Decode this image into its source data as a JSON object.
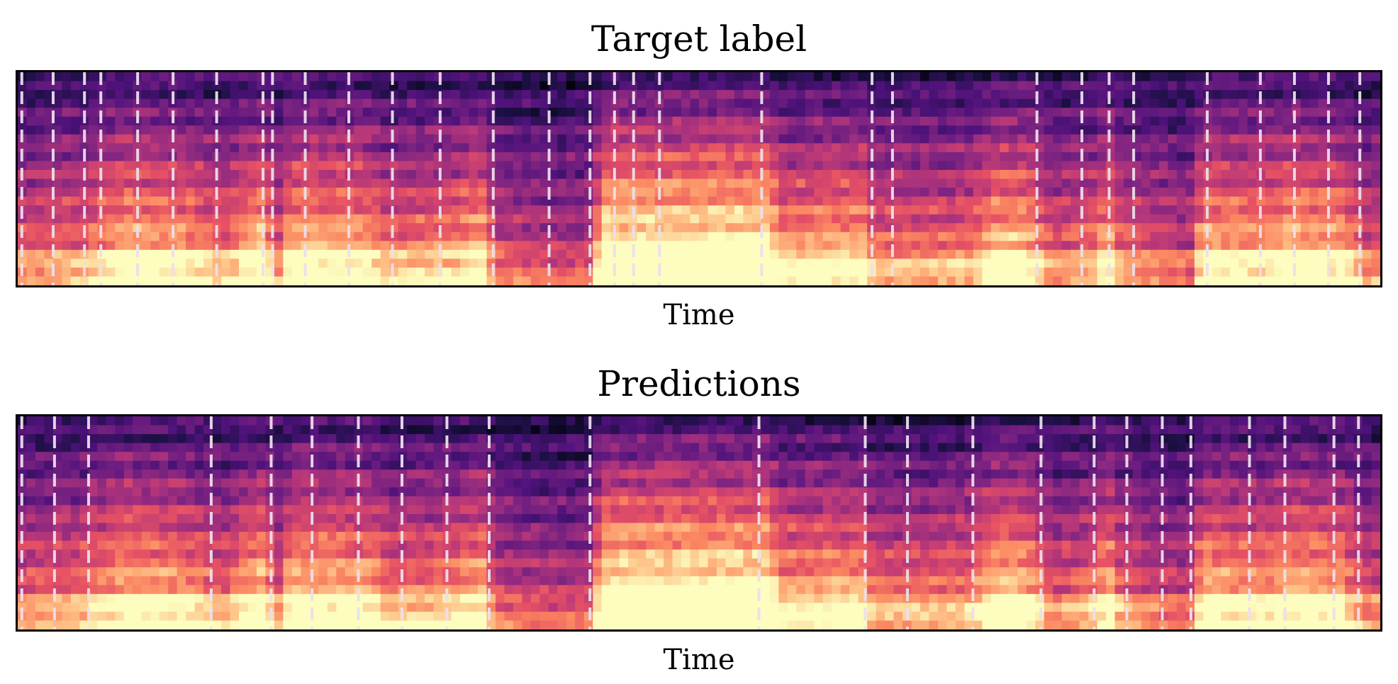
{
  "chart_data": [
    {
      "type": "heatmap",
      "title": "Target label",
      "xlabel": "Time",
      "ylabel": "",
      "colormap": "magma",
      "n_time_frames": 154,
      "n_freq_bins": 24,
      "boundaries_normalized_time": [
        0.003,
        0.026,
        0.049,
        0.061,
        0.088,
        0.114,
        0.146,
        0.18,
        0.187,
        0.211,
        0.243,
        0.275,
        0.31,
        0.349,
        0.39,
        0.42,
        0.438,
        0.452,
        0.471,
        0.546,
        0.627,
        0.642,
        0.748,
        0.781,
        0.801,
        0.819,
        0.873,
        0.912,
        0.937,
        0.962,
        0.985
      ],
      "boundary_style": "white dashed"
    },
    {
      "type": "heatmap",
      "title": "Predictions",
      "xlabel": "Time",
      "ylabel": "",
      "colormap": "magma",
      "n_time_frames": 154,
      "n_freq_bins": 24,
      "boundaries_normalized_time": [
        0.003,
        0.027,
        0.052,
        0.142,
        0.186,
        0.216,
        0.25,
        0.282,
        0.315,
        0.346,
        0.42,
        0.544,
        0.622,
        0.653,
        0.701,
        0.751,
        0.79,
        0.814,
        0.84,
        0.861,
        0.904,
        0.93,
        0.966,
        0.984
      ],
      "boundary_style": "white dashed"
    }
  ]
}
